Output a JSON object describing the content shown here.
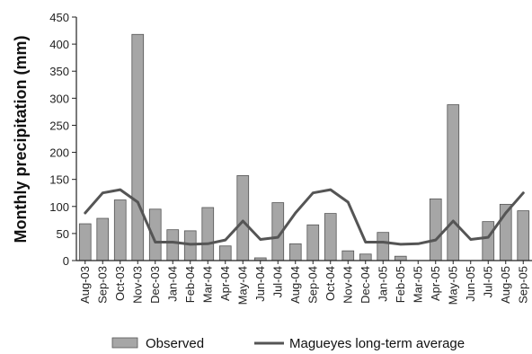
{
  "chart_data": {
    "type": "bar",
    "ylabel": "Monthly precipitation (mm)",
    "xlabel": "",
    "ylim": [
      0,
      450
    ],
    "yticks": [
      0,
      50,
      100,
      150,
      200,
      250,
      300,
      350,
      400,
      450
    ],
    "grid": false,
    "legend_position": "bottom",
    "categories": [
      "Aug-03",
      "Sep-03",
      "Oct-03",
      "Nov-03",
      "Dec-03",
      "Jan-04",
      "Feb-04",
      "Mar-04",
      "Apr-04",
      "May-04",
      "Jun-04",
      "Jul-04",
      "Aug-04",
      "Sep-04",
      "Oct-04",
      "Nov-04",
      "Dec-04",
      "Jan-05",
      "Feb-05",
      "Mar-05",
      "Apr-05",
      "May-05",
      "Jun-05",
      "Jul-05",
      "Aug-05",
      "Sep-05"
    ],
    "series": [
      {
        "name": "Observed",
        "type": "bar",
        "color": "#a6a6a6",
        "values": [
          68,
          78,
          112,
          418,
          95,
          57,
          55,
          98,
          27,
          157,
          5,
          107,
          31,
          66,
          87,
          18,
          12,
          52,
          8,
          0,
          114,
          288,
          0,
          72,
          104,
          92
        ]
      },
      {
        "name": "Magueyes long-term average",
        "type": "line",
        "color": "#555555",
        "values": [
          88,
          125,
          131,
          108,
          34,
          34,
          30,
          31,
          38,
          73,
          39,
          43,
          88,
          125,
          131,
          108,
          34,
          34,
          30,
          31,
          38,
          73,
          39,
          43,
          88,
          125
        ]
      }
    ]
  }
}
